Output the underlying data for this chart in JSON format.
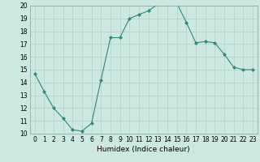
{
  "x": [
    0,
    1,
    2,
    3,
    4,
    5,
    6,
    7,
    8,
    9,
    10,
    11,
    12,
    13,
    14,
    15,
    16,
    17,
    18,
    19,
    20,
    21,
    22,
    23
  ],
  "y": [
    14.7,
    13.3,
    12.0,
    11.2,
    10.3,
    10.2,
    10.8,
    14.2,
    17.5,
    17.5,
    19.0,
    19.3,
    19.6,
    20.1,
    20.1,
    20.2,
    18.7,
    17.1,
    17.2,
    17.1,
    16.2,
    15.2,
    15.0,
    15.0
  ],
  "line_color": "#2e8b74",
  "marker": "D",
  "marker_size": 2,
  "bg_color": "#cde8e0",
  "grid_color": "#afd0c8",
  "xlabel": "Humidex (Indice chaleur)",
  "xlim": [
    -0.5,
    23.5
  ],
  "ylim": [
    10,
    20
  ],
  "yticks": [
    10,
    11,
    12,
    13,
    14,
    15,
    16,
    17,
    18,
    19,
    20
  ],
  "xticks": [
    0,
    1,
    2,
    3,
    4,
    5,
    6,
    7,
    8,
    9,
    10,
    11,
    12,
    13,
    14,
    15,
    16,
    17,
    18,
    19,
    20,
    21,
    22,
    23
  ],
  "label_fontsize": 6.5,
  "tick_fontsize": 5.5
}
